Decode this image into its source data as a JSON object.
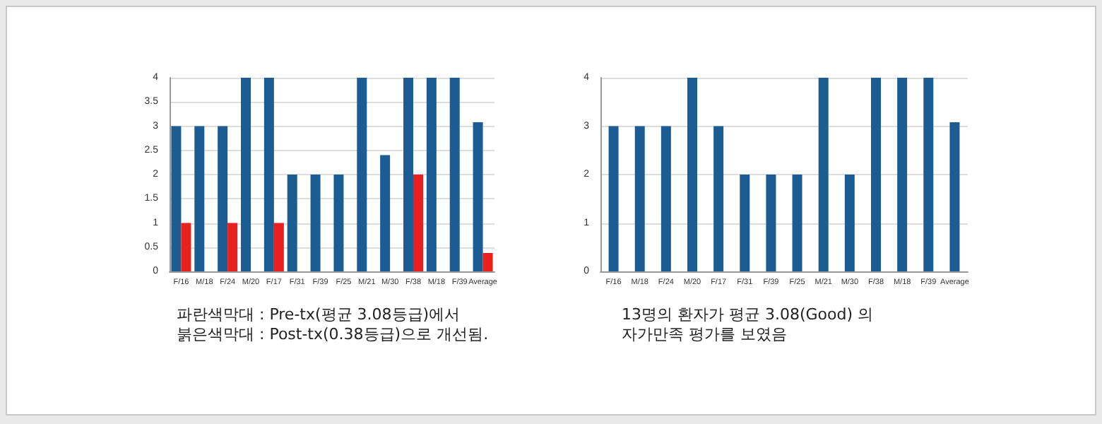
{
  "chart_data": [
    {
      "type": "bar",
      "categories": [
        "F/16",
        "M/18",
        "F/24",
        "M/20",
        "F/17",
        "F/31",
        "F/39",
        "F/25",
        "M/21",
        "M/30",
        "F/38",
        "M/18",
        "F/39",
        "Average"
      ],
      "series": [
        {
          "color": "#1b5d93",
          "values": [
            3,
            3,
            3,
            4,
            4,
            2,
            2,
            2,
            4,
            2.4,
            4,
            4,
            4,
            3.08
          ]
        },
        {
          "color": "#e8201e",
          "values": [
            1,
            0,
            1,
            0,
            1,
            0,
            0,
            0,
            0,
            0,
            2,
            0,
            0,
            0.38
          ]
        }
      ],
      "ylim": [
        0,
        4
      ],
      "yticks": [
        0,
        0.5,
        1,
        1.5,
        2,
        2.5,
        3,
        3.5,
        4
      ],
      "grid": "y",
      "annotations": [
        "파란색막대 : Pre-tx(평균  3.08등급)에서",
        "붉은색막대 : Post-tx(0.38등급)으로 개선됨."
      ]
    },
    {
      "type": "bar",
      "categories": [
        "F/16",
        "M/18",
        "F/24",
        "M/20",
        "F/17",
        "F/31",
        "F/39",
        "F/25",
        "M/21",
        "M/30",
        "F/38",
        "M/18",
        "F/39",
        "Average"
      ],
      "series": [
        {
          "color": "#1b5d93",
          "values": [
            3,
            3,
            3,
            4,
            3,
            2,
            2,
            2,
            4,
            2,
            4,
            4,
            4,
            3.08
          ]
        }
      ],
      "ylim": [
        0,
        4
      ],
      "yticks": [
        0,
        1,
        2,
        3,
        4
      ],
      "grid": "y",
      "annotations": [
        "13명의 환자가 평균 3.08(Good) 의",
        "자가만족 평가를 보였음"
      ]
    }
  ]
}
